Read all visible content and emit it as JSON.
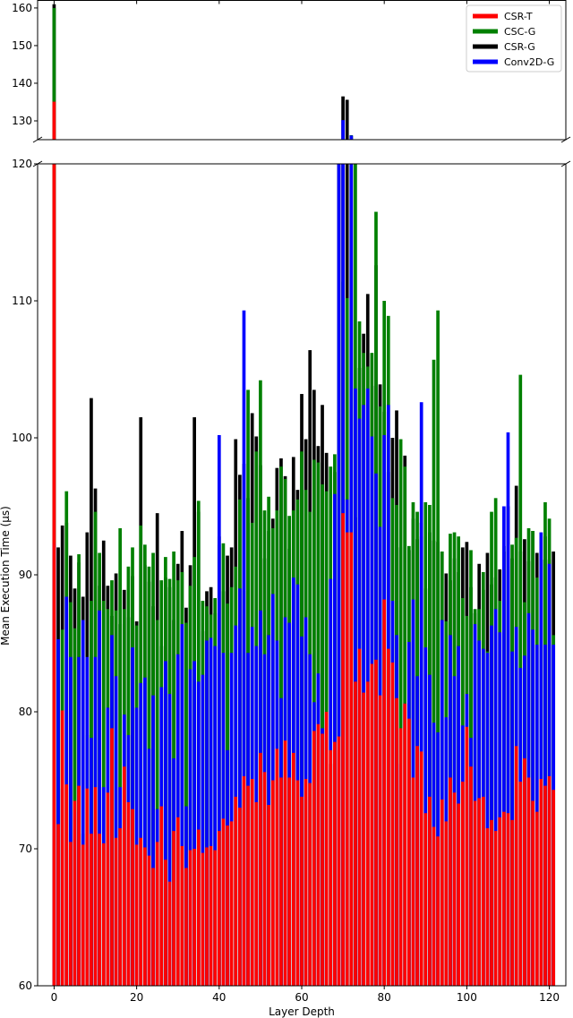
{
  "chart_data": {
    "type": "bar",
    "bar_mode": "overlay",
    "xlabel": "Layer Depth",
    "ylabel": "Mean Execution Time (µs)",
    "broken_y_axis": true,
    "ylim_lower": [
      60,
      120
    ],
    "ylim_upper": [
      125,
      162
    ],
    "xlim": [
      -4,
      124
    ],
    "yticks_lower": [
      "60",
      "70",
      "80",
      "90",
      "100",
      "110",
      "120"
    ],
    "yticks_upper": [
      "130",
      "140",
      "150",
      "160"
    ],
    "xticks": [
      "0",
      "20",
      "40",
      "60",
      "80",
      "100",
      "120"
    ],
    "legend_position": "top-right",
    "draw_order": [
      "CSR-G",
      "CSC-G",
      "Conv2D-G",
      "CSR-T"
    ],
    "series": [
      {
        "name": "CSR-T",
        "color": "#ff0000",
        "values": [
          135.1,
          71.8,
          80.1,
          74.7,
          70.5,
          73.5,
          74.6,
          70.3,
          74.4,
          71.1,
          74.5,
          71.1,
          70.4,
          74.1,
          78.8,
          70.8,
          71.5,
          76.0,
          73.4,
          72.9,
          70.3,
          70.8,
          70.1,
          69.5,
          68.6,
          70.5,
          73.1,
          69.2,
          67.6,
          71.3,
          72.3,
          70.2,
          68.6,
          69.9,
          70.0,
          71.4,
          69.7,
          70.1,
          70.2,
          69.9,
          71.3,
          72.2,
          71.7,
          72.0,
          73.8,
          73.0,
          75.3,
          74.6,
          75.1,
          73.4,
          77.0,
          75.6,
          73.2,
          75.0,
          77.3,
          75.2,
          77.9,
          75.2,
          77.0,
          75.0,
          73.8,
          75.1,
          74.8,
          78.6,
          79.1,
          78.4,
          80.0,
          77.2,
          77.8,
          78.2,
          94.5,
          93.1,
          93.1,
          82.2,
          84.6,
          81.4,
          82.2,
          83.5,
          83.8,
          81.2,
          88.2,
          84.6,
          83.6,
          81.0,
          78.8,
          80.6,
          79.5,
          75.2,
          77.5,
          77.1,
          72.6,
          73.8,
          71.6,
          70.9,
          73.6,
          72.0,
          75.2,
          74.1,
          73.3,
          74.9,
          78.9,
          76.0,
          73.5,
          73.7,
          73.8,
          71.5,
          72.1,
          71.3,
          72.3,
          72.7,
          72.6,
          72.1,
          77.5,
          74.9,
          76.6,
          75.2,
          73.5,
          72.7,
          75.1,
          74.6,
          75.3,
          74.3
        ]
      },
      {
        "name": "CSC-G",
        "color": "#008000",
        "values": [
          160.0,
          85.0,
          86.0,
          96.1,
          88.0,
          86.1,
          91.5,
          71.1,
          78.3,
          88.1,
          94.6,
          91.6,
          88.1,
          87.5,
          89.6,
          87.4,
          93.4,
          87.5,
          90.6,
          92.0,
          86.3,
          93.6,
          92.2,
          90.6,
          91.6,
          86.7,
          89.6,
          91.3,
          89.7,
          91.7,
          89.6,
          90.2,
          86.5,
          89.2,
          91.3,
          95.4,
          88.1,
          87.7,
          87.1,
          88.3,
          92.2,
          92.3,
          87.9,
          89.1,
          90.6,
          95.5,
          88.8,
          103.5,
          93.8,
          99.0,
          104.2,
          94.7,
          95.7,
          93.4,
          94.7,
          97.9,
          97.0,
          94.3,
          94.7,
          95.5,
          99.0,
          96.2,
          94.6,
          98.4,
          98.2,
          96.6,
          96.1,
          97.9,
          98.8,
          108.3,
          111.4,
          110.2,
          126.2,
          120.2,
          108.5,
          106.2,
          105.2,
          106.2,
          116.5,
          102.3,
          110.0,
          108.9,
          95.6,
          95.1,
          99.9,
          97.9,
          92.1,
          95.3,
          94.6,
          92.8,
          95.3,
          95.1,
          105.7,
          109.3,
          91.7,
          86.6,
          93.0,
          93.1,
          92.8,
          88.3,
          87.0,
          91.8,
          87.5,
          87.5,
          90.2,
          84.4,
          94.6,
          95.6,
          88.1,
          92.1,
          90.6,
          92.2,
          92.7,
          104.6,
          88.0,
          93.4,
          93.2,
          89.8,
          91.1,
          95.3,
          94.1,
          85.6
        ]
      },
      {
        "name": "CSR-G",
        "color": "#000000",
        "values": [
          161.0,
          92.0,
          93.6,
          93.8,
          91.4,
          89.0,
          90.9,
          88.4,
          93.1,
          102.9,
          96.3,
          89.2,
          92.5,
          89.2,
          87.0,
          90.1,
          86.4,
          88.9,
          86.9,
          89.9,
          86.6,
          101.5,
          90.7,
          89.5,
          87.7,
          94.5,
          84.8,
          89.8,
          89.1,
          86.7,
          90.8,
          93.2,
          87.6,
          90.7,
          101.5,
          94.6,
          85.9,
          88.8,
          89.1,
          87.2,
          92.8,
          88.8,
          91.4,
          92.0,
          99.9,
          97.3,
          98.1,
          95.6,
          101.8,
          100.1,
          98.0,
          91.2,
          93.2,
          94.1,
          97.8,
          98.5,
          97.2,
          91.9,
          98.6,
          96.2,
          103.2,
          99.9,
          106.4,
          103.5,
          99.4,
          102.4,
          98.9,
          76.2,
          97.5,
          122.9,
          136.5,
          135.6,
          126.0,
          94.2,
          105.1,
          107.6,
          110.5,
          103.8,
          112.6,
          103.9,
          101.9,
          97.5,
          100.0,
          102.0,
          92.0,
          98.7,
          91.8,
          94.1,
          92.6,
          93.8,
          89.0,
          93.1,
          92.5,
          92.4,
          91.7,
          90.1,
          89.6,
          91.2,
          90.2,
          92.0,
          92.4,
          89.1,
          87.2,
          90.8,
          88.9,
          91.6,
          89.3,
          89.8,
          90.4,
          91.7,
          95.0,
          91.2,
          96.5,
          91.7,
          92.6,
          91.0,
          93.2,
          91.6,
          91.1,
          92.8,
          91.1,
          91.7
        ]
      },
      {
        "name": "Conv2D-G",
        "color": "#0000ff",
        "values": [
          92.3,
          85.3,
          74.4,
          88.4,
          84.0,
          72.7,
          84.0,
          86.7,
          84.0,
          78.1,
          84.0,
          87.4,
          74.5,
          80.3,
          85.6,
          82.6,
          74.5,
          79.8,
          78.3,
          84.7,
          80.3,
          82.1,
          82.5,
          77.3,
          81.2,
          72.9,
          81.8,
          83.7,
          81.3,
          76.6,
          84.2,
          86.4,
          73.1,
          83.1,
          83.7,
          82.2,
          82.7,
          85.2,
          85.4,
          84.8,
          100.2,
          84.3,
          77.2,
          84.3,
          86.3,
          89.0,
          109.3,
          84.3,
          86.2,
          84.8,
          87.4,
          84.2,
          85.6,
          88.6,
          85.2,
          81.0,
          86.9,
          86.5,
          89.8,
          89.3,
          85.5,
          86.9,
          84.2,
          80.7,
          82.8,
          78.8,
          79.4,
          89.7,
          95.9,
          123.8,
          130.2,
          95.5,
          126.1,
          103.6,
          101.4,
          102.4,
          103.6,
          100.1,
          97.4,
          93.5,
          100.2,
          102.4,
          88.1,
          85.6,
          76.2,
          80.6,
          85.1,
          88.2,
          82.6,
          102.6,
          84.7,
          82.7,
          79.2,
          78.5,
          86.7,
          79.6,
          85.6,
          82.6,
          84.8,
          79.0,
          81.3,
          78.1,
          86.4,
          85.2,
          84.6,
          84.3,
          86.3,
          87.5,
          85.8,
          95.0,
          100.4,
          84.4,
          86.2,
          83.2,
          84.1,
          87.2,
          86.0,
          84.9,
          93.1,
          84.9,
          90.8,
          84.9
        ]
      }
    ]
  }
}
